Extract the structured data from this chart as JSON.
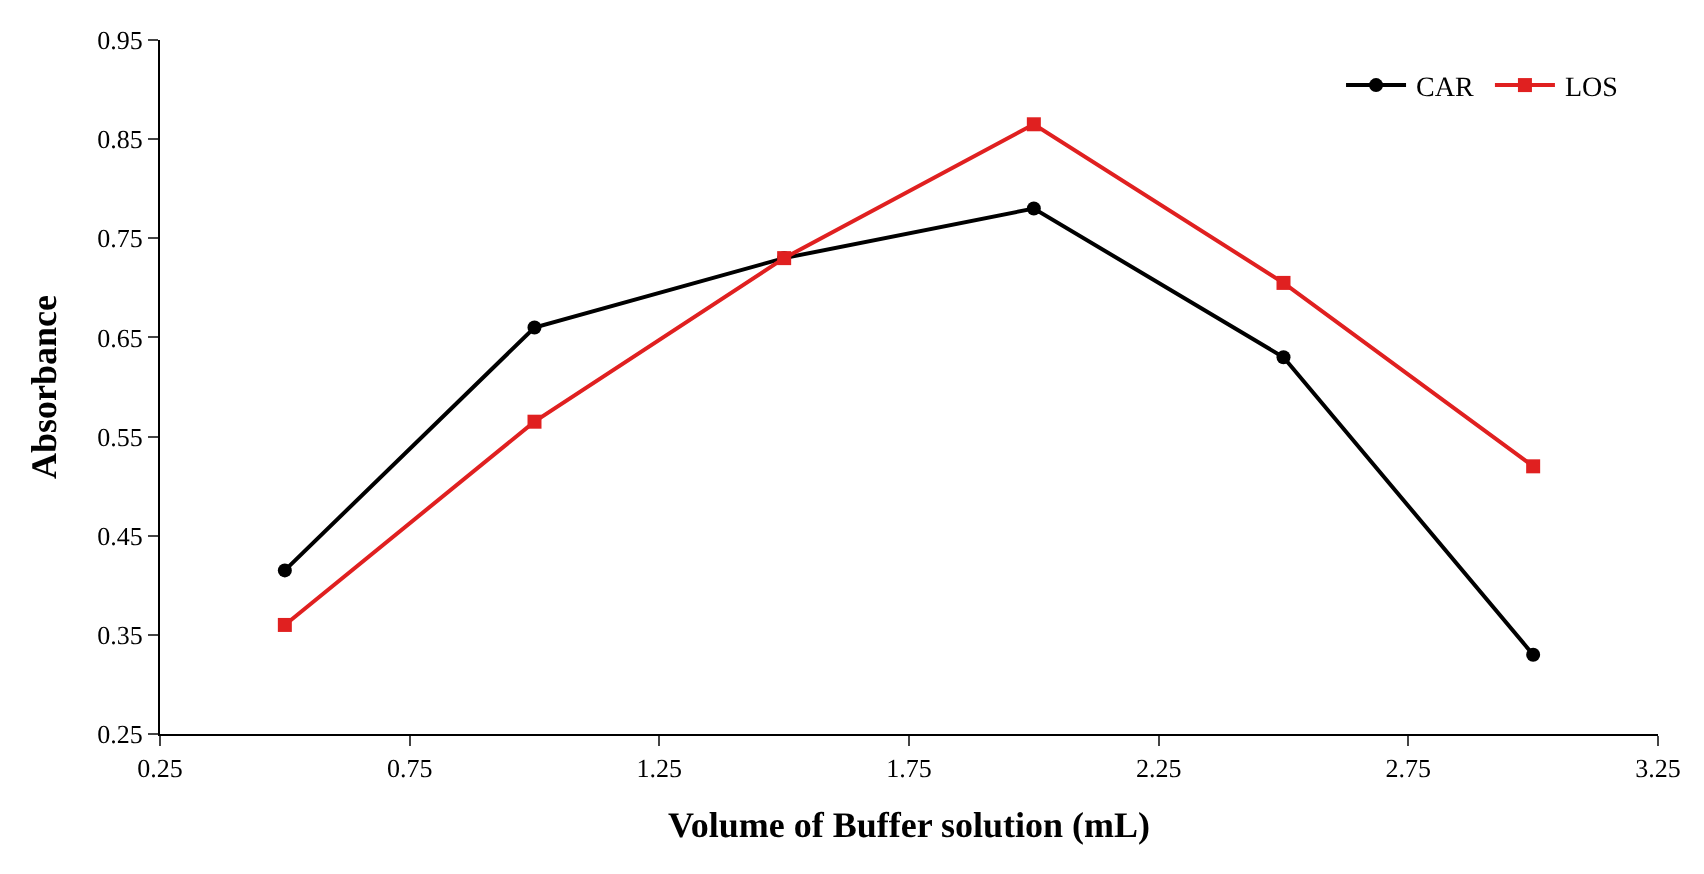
{
  "chart_data": {
    "type": "line",
    "xlabel": "Volume of Buffer solution (mL)",
    "ylabel": "Absorbance",
    "x": [
      0.5,
      1.0,
      1.5,
      2.0,
      2.5,
      3.0
    ],
    "series": [
      {
        "name": "CAR",
        "color": "#000000",
        "marker": "circle",
        "values": [
          0.415,
          0.66,
          0.73,
          0.78,
          0.63,
          0.33
        ]
      },
      {
        "name": "LOS",
        "color": "#e02020",
        "marker": "square",
        "values": [
          0.36,
          0.565,
          0.73,
          0.865,
          0.705,
          0.52
        ]
      }
    ],
    "xlim": [
      0.25,
      3.25
    ],
    "xticks": [
      0.25,
      0.75,
      1.25,
      1.75,
      2.25,
      2.75,
      3.25
    ],
    "ylim": [
      0.25,
      0.95
    ],
    "yticks": [
      0.25,
      0.35,
      0.45,
      0.55,
      0.65,
      0.75,
      0.85,
      0.95
    ],
    "legend": "top right",
    "line_style": "solid"
  }
}
